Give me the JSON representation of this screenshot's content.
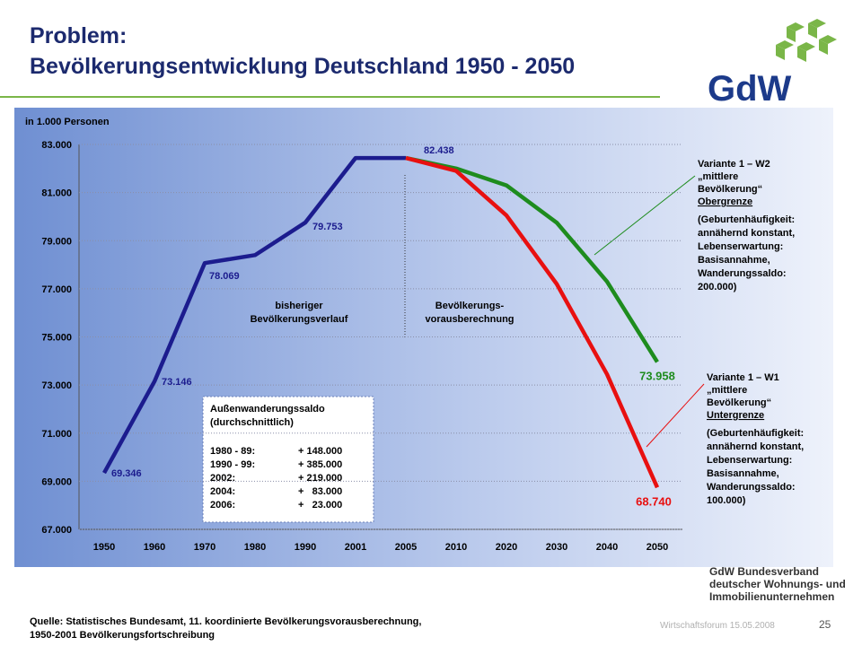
{
  "header": {
    "title_lines": [
      "Problem:",
      "Bevölkerungsentwicklung Deutschland 1950 - 2050"
    ],
    "logo": "GdW"
  },
  "org_lines": [
    "GdW Bundesverband",
    "deutscher Wohnungs- und",
    "Immobilienunternehmen"
  ],
  "footer": {
    "source_lines": [
      "Quelle: Statistisches Bundesamt, 11. koordinierte Bevölkerungsvorausberechnung,",
      "1950-2001 Bevölkerungsfortschreibung"
    ],
    "event": "Wirtschaftsforum 15.05.2008",
    "page": "25"
  },
  "chart_data": {
    "type": "line",
    "unit_label": "in 1.000 Personen",
    "categories": [
      "1950",
      "1960",
      "1970",
      "1980",
      "1990",
      "2001",
      "2005",
      "2010",
      "2020",
      "2030",
      "2040",
      "2050"
    ],
    "ylim": [
      67000,
      83000
    ],
    "yticks": [
      {
        "value": 67000,
        "label": "67.000"
      },
      {
        "value": 69000,
        "label": "69.000"
      },
      {
        "value": 71000,
        "label": "71.000"
      },
      {
        "value": 73000,
        "label": "73.000"
      },
      {
        "value": 75000,
        "label": "75.000"
      },
      {
        "value": 77000,
        "label": "77.000"
      },
      {
        "value": 79000,
        "label": "79.000"
      },
      {
        "value": 81000,
        "label": "81.000"
      },
      {
        "value": 83000,
        "label": "83.000"
      }
    ],
    "grid": true,
    "series": [
      {
        "name": "bisheriger Bevölkerungsverlauf",
        "color": "#1c1c8e",
        "values": [
          69346,
          73146,
          78069,
          78400,
          79753,
          82438,
          82438,
          null,
          null,
          null,
          null,
          null
        ],
        "value_labels": [
          "69.346",
          "73.146",
          "78.069",
          null,
          "79.753",
          null,
          "82.438",
          null,
          null,
          null,
          null,
          null
        ]
      },
      {
        "name": "Variante 1 – W2",
        "color": "#1e8c1e",
        "values": [
          null,
          null,
          null,
          null,
          null,
          null,
          82438,
          82000,
          81300,
          79750,
          77300,
          73958
        ],
        "value_labels": [
          null,
          null,
          null,
          null,
          null,
          null,
          null,
          null,
          null,
          null,
          null,
          "73.958"
        ]
      },
      {
        "name": "Variante 1 – W1",
        "color": "#e81010",
        "values": [
          null,
          null,
          null,
          null,
          null,
          null,
          82438,
          81900,
          80050,
          77200,
          73450,
          68740
        ],
        "value_labels": [
          null,
          null,
          null,
          null,
          null,
          null,
          null,
          null,
          null,
          null,
          null,
          "68.740"
        ]
      }
    ],
    "phase_labels": [
      [
        "bisheriger",
        "Bevölkerungsverlauf"
      ],
      [
        "Bevölkerungs-",
        "vorausberechnung"
      ]
    ],
    "variant_notes": [
      {
        "lines": [
          "„mittlere",
          "Bevölkerung“"
        ],
        "bound": "Obergrenze",
        "details": [
          "(Geburtenhäufigkeit:",
          "annähernd konstant,",
          "Lebenserwartung:",
          "Basisannahme,",
          "Wanderungssaldo:",
          "200.000)"
        ]
      },
      {
        "lines": [
          "„mittlere",
          "Bevölkerung“"
        ],
        "bound": "Untergrenze",
        "details": [
          "(Geburtenhäufigkeit:",
          "annähernd konstant,",
          "Lebenserwartung:",
          "Basisannahme,",
          "Wanderungssaldo:",
          "100.000)"
        ]
      }
    ],
    "migration_box": {
      "title_lines": [
        "Außenwanderungssaldo",
        "(durchschnittlich)"
      ],
      "rows": [
        [
          "1980 - 89:",
          "+ 148.000"
        ],
        [
          "1990 - 99:",
          "+ 385.000"
        ],
        [
          "2002:",
          "+ 219.000"
        ],
        [
          "2004:",
          "+   83.000"
        ],
        [
          "2006:",
          "+   23.000"
        ]
      ]
    }
  }
}
